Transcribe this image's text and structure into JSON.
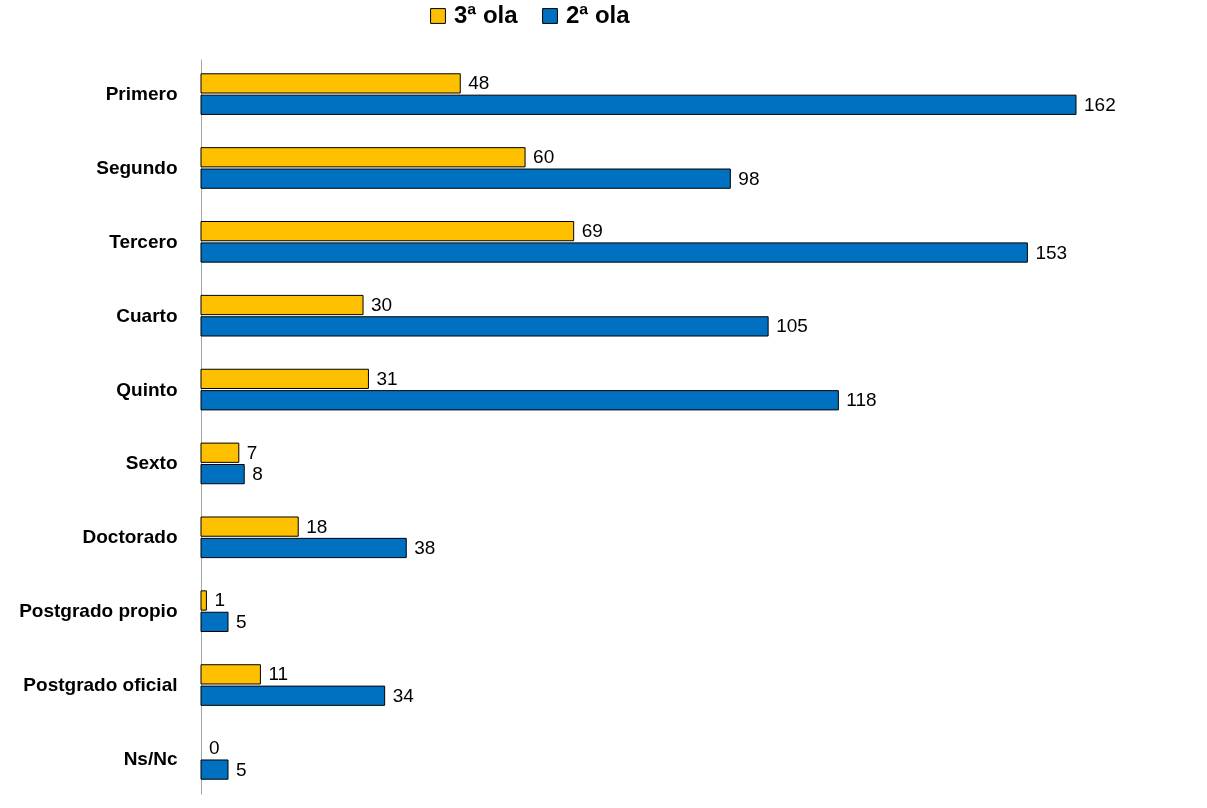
{
  "chart_data": {
    "type": "bar",
    "orientation": "horizontal",
    "categories": [
      "Primero",
      "Segundo",
      "Tercero",
      "Cuarto",
      "Quinto",
      "Sexto",
      "Doctorado",
      "Postgrado propio",
      "Postgrado oficial",
      "Ns/Nc"
    ],
    "series": [
      {
        "name": "3ª ola",
        "color": "#ffc000",
        "values": [
          48,
          60,
          69,
          30,
          31,
          7,
          18,
          1,
          11,
          0
        ]
      },
      {
        "name": "2ª ola",
        "color": "#0070c0",
        "values": [
          162,
          98,
          153,
          105,
          118,
          8,
          38,
          5,
          34,
          5
        ]
      }
    ],
    "data_labels": true,
    "legend": "top"
  }
}
